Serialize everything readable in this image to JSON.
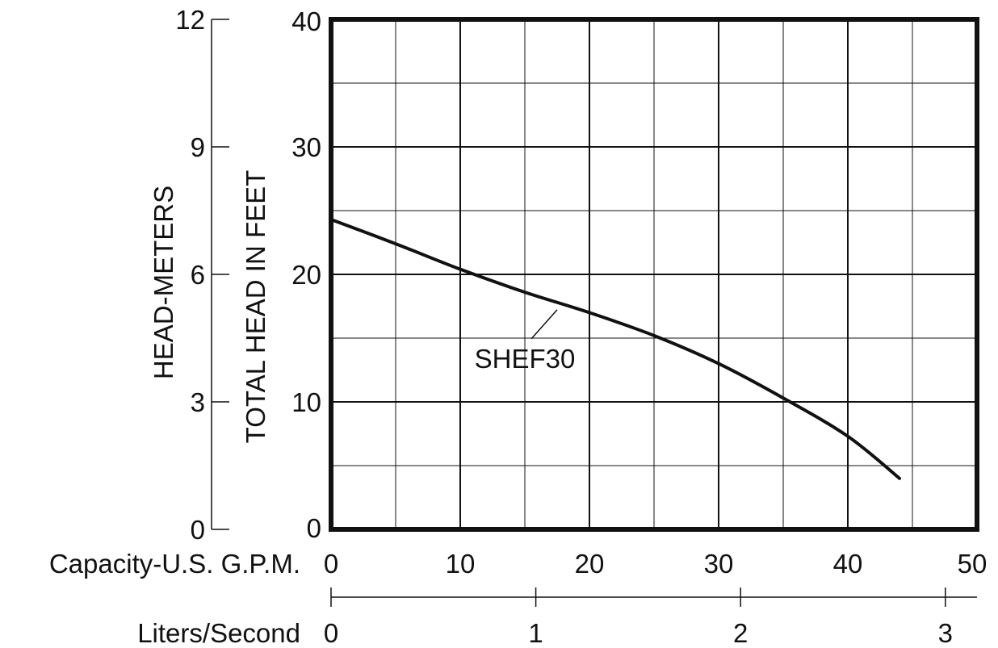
{
  "chart_data": {
    "type": "line",
    "x": [
      0,
      5,
      10,
      15,
      20,
      25,
      30,
      35,
      40,
      44
    ],
    "x_unit": "Capacity-U.S. G.P.M.",
    "series": [
      {
        "name": "SHEF30",
        "values": [
          24.3,
          22.4,
          20.4,
          18.6,
          17.0,
          15.2,
          13.0,
          10.3,
          7.3,
          4.0
        ]
      }
    ],
    "xlim": [
      0,
      50
    ],
    "ylim": [
      0,
      40
    ],
    "x_ticks": [
      {
        "value": 0,
        "label": "0"
      },
      {
        "value": 10,
        "label": "10"
      },
      {
        "value": 20,
        "label": "20"
      },
      {
        "value": 30,
        "label": "30"
      },
      {
        "value": 40,
        "label": "40"
      },
      {
        "value": 50,
        "label": "50"
      }
    ],
    "y_ticks": [
      {
        "value": 0,
        "label": "0"
      },
      {
        "value": 10,
        "label": "10"
      },
      {
        "value": 20,
        "label": "20"
      },
      {
        "value": 30,
        "label": "30"
      },
      {
        "value": 40,
        "label": "40"
      }
    ],
    "ylabel": "TOTAL HEAD IN FEET",
    "xlabel": "Capacity-U.S. G.P.M.",
    "meters_axis": {
      "label": "HEAD-METERS",
      "lim": [
        0,
        12
      ],
      "ticks": [
        {
          "value": 0,
          "label": "0"
        },
        {
          "value": 3,
          "label": "3"
        },
        {
          "value": 6,
          "label": "6"
        },
        {
          "value": 9,
          "label": "9"
        },
        {
          "value": 12,
          "label": "12"
        }
      ]
    },
    "lps_axis": {
      "label": "Liters/Second",
      "gpm_per_unit": 15.85,
      "ticks": [
        {
          "value": 0,
          "label": "0"
        },
        {
          "value": 1,
          "label": "1"
        },
        {
          "value": 2,
          "label": "2"
        },
        {
          "value": 3,
          "label": "3"
        }
      ]
    },
    "grid": true,
    "annotation": {
      "text": "SHEF30",
      "points_to": {
        "x": 17.5,
        "y": 17.6
      }
    }
  }
}
